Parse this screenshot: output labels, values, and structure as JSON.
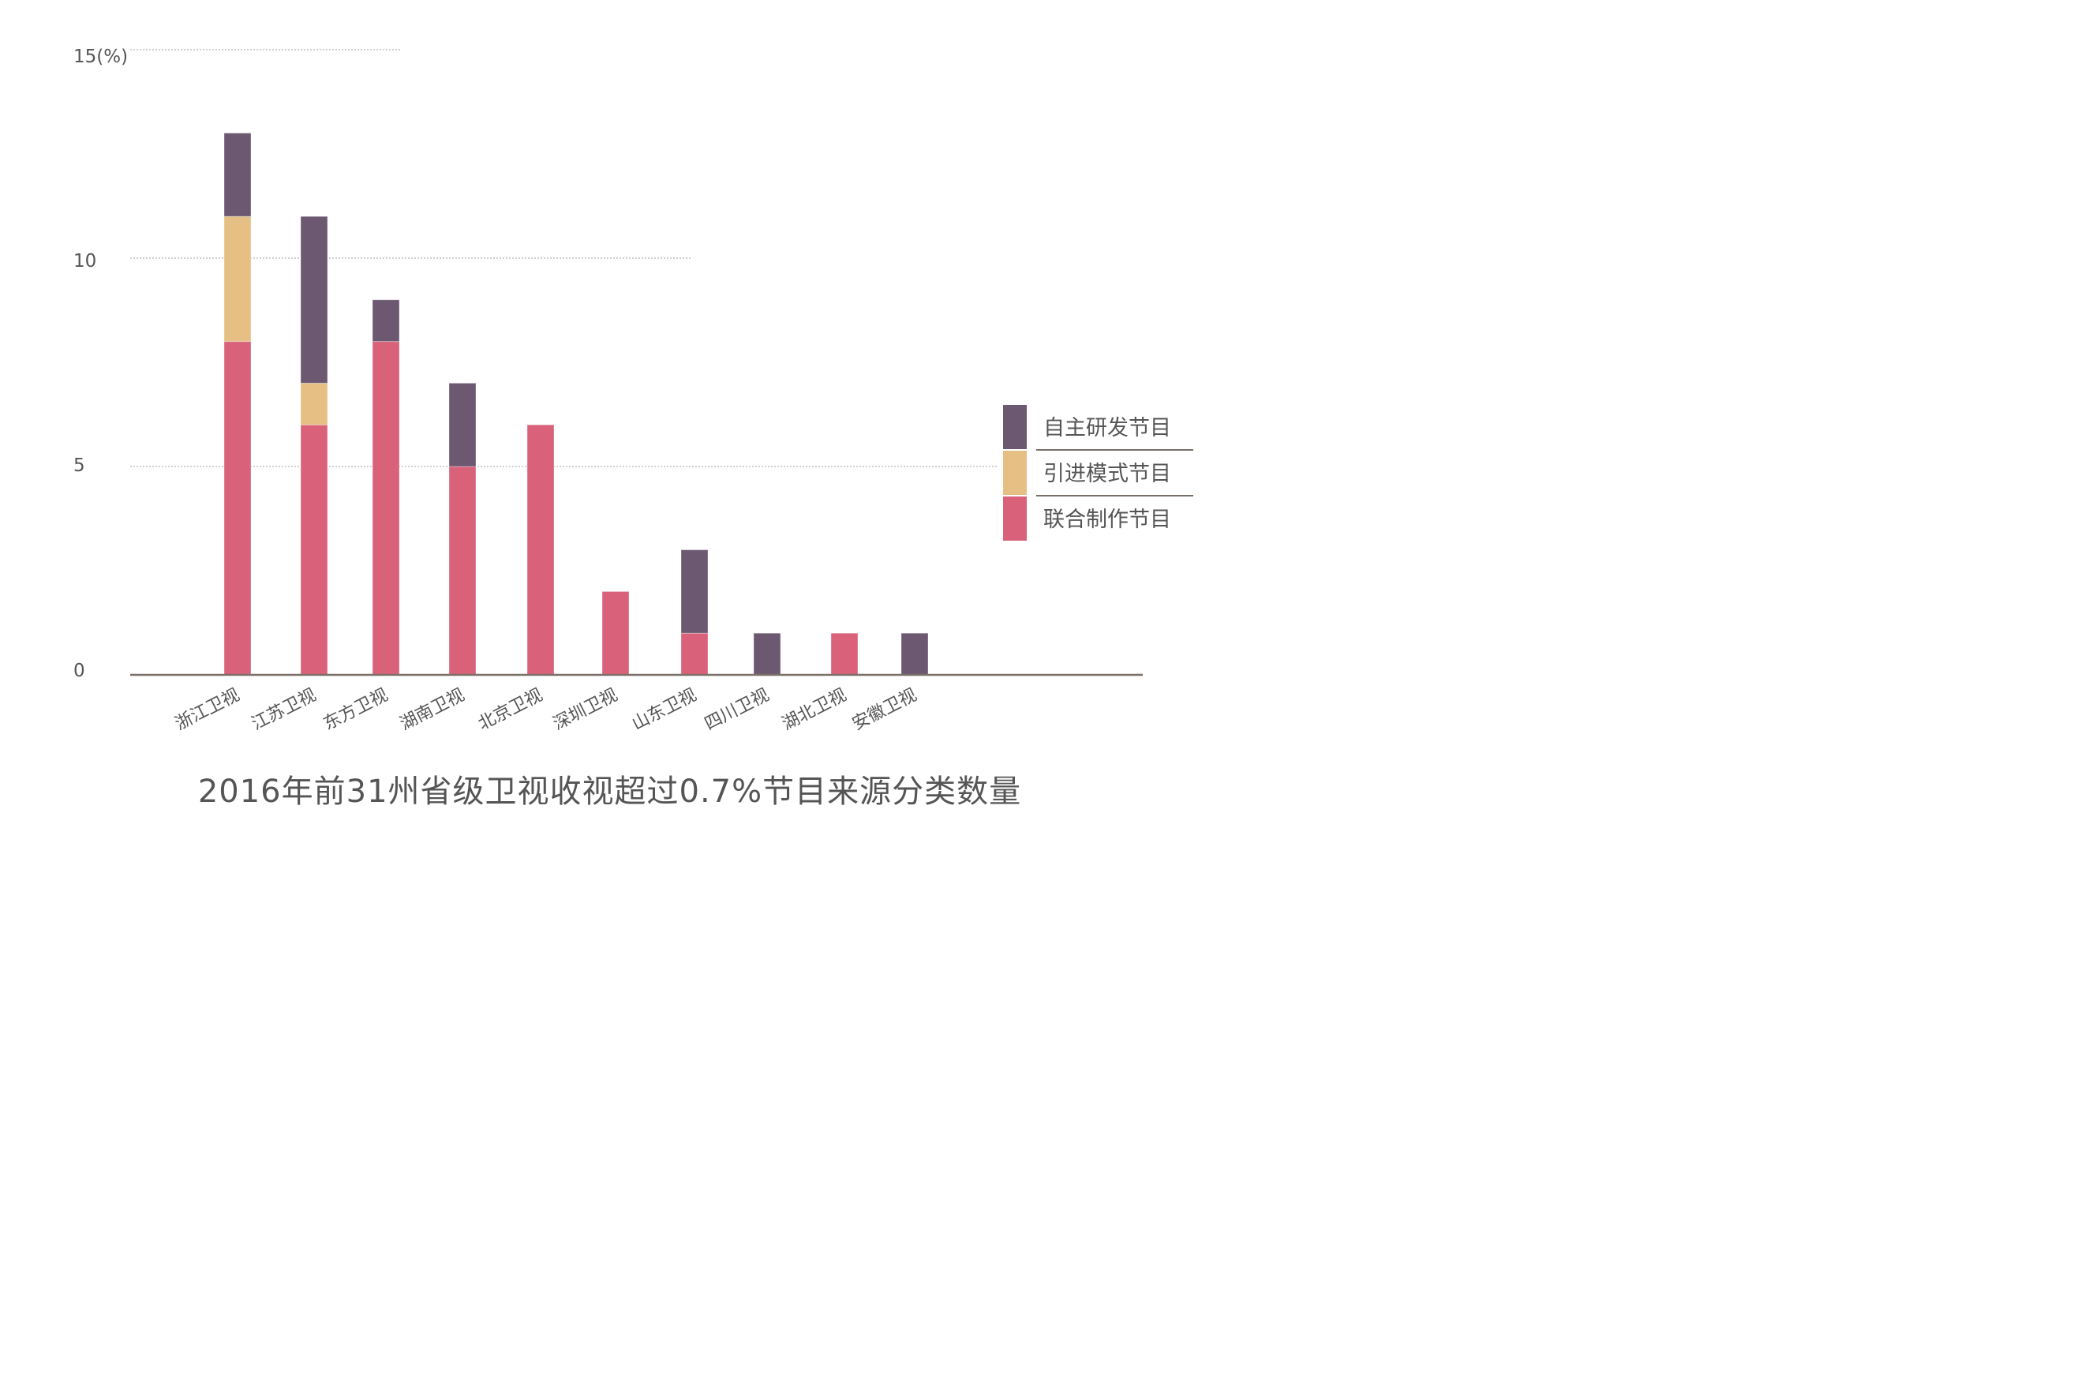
{
  "chart_data": {
    "type": "bar",
    "stacked": true,
    "title": "2016年前31州省级卫视收视超过0.7%节目来源分类数量",
    "yticks": [
      "0",
      "5",
      "10",
      "15(%)"
    ],
    "ylim": [
      0,
      15
    ],
    "categories": [
      "浙江卫视",
      "江苏卫视",
      "东方卫视",
      "湖南卫视",
      "北京卫视",
      "深圳卫视",
      "山东卫视",
      "四川卫视",
      "湖北卫视",
      "安徽卫视"
    ],
    "series": [
      {
        "name": "联合制作节目",
        "color": "#D9627A",
        "values": [
          8,
          6,
          8,
          5,
          6,
          2,
          1,
          0,
          1,
          0
        ]
      },
      {
        "name": "引进模式节目",
        "color": "#E5BF84",
        "values": [
          3,
          1,
          0,
          0,
          0,
          0,
          0,
          0,
          0,
          0
        ]
      },
      {
        "name": "自主研发节目",
        "color": "#6C5870",
        "values": [
          2,
          4,
          1,
          2,
          0,
          0,
          2,
          1,
          0,
          1
        ]
      }
    ],
    "legend_order": [
      "自主研发节目",
      "引进模式节目",
      "联合制作节目"
    ],
    "legend_position": "right",
    "grid": "partial dotted horizontal lines"
  }
}
